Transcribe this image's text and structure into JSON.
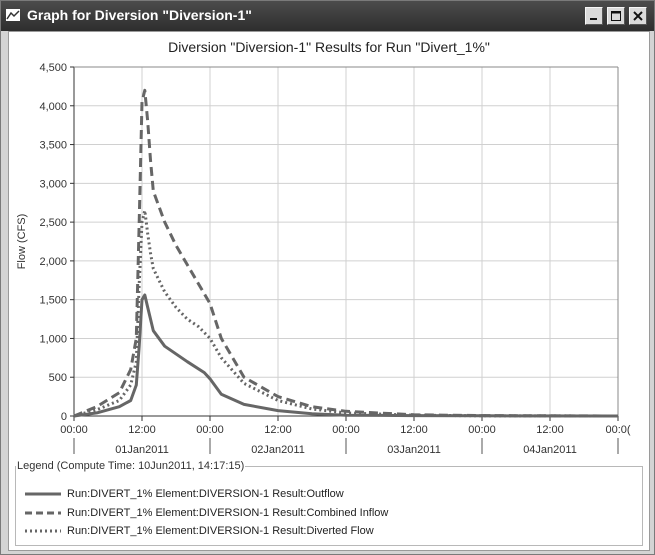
{
  "window": {
    "title": "Graph for Diversion \"Diversion-1\"",
    "buttons": [
      "minimize",
      "maximize",
      "close"
    ]
  },
  "chart_data": {
    "type": "line",
    "title": "Diversion \"Diversion-1\" Results for Run \"Divert_1%\"",
    "xlabel": "",
    "ylabel": "Flow (CFS)",
    "ylim": [
      0,
      4500
    ],
    "yticks": [
      0,
      500,
      1000,
      1500,
      2000,
      2500,
      3000,
      3500,
      4000,
      4500
    ],
    "ytick_labels": [
      "0",
      "500",
      "1,000",
      "1,500",
      "2,000",
      "2,500",
      "3,000",
      "3,500",
      "4,000",
      "4,500"
    ],
    "xlim_hours": [
      0,
      96
    ],
    "xtick_labels": [
      "00:00",
      "12:00",
      "00:00",
      "12:00",
      "00:00",
      "12:00",
      "00:00",
      "12:00",
      "00:0("
    ],
    "date_labels": [
      "01Jan2011",
      "02Jan2011",
      "03Jan2011",
      "04Jan2011"
    ],
    "grid": true,
    "legend_title": "Legend (Compute Time: 10Jun2011, 14:17:15)",
    "legend_position": "bottom",
    "series": [
      {
        "name": "Run:DIVERT_1% Element:DIVERSION-1 Result:Outflow",
        "style": "solid",
        "color": "#666666",
        "x": [
          0,
          4,
          8,
          10,
          11,
          11.5,
          12,
          12.5,
          13,
          14,
          16,
          20,
          23,
          24,
          26,
          30,
          36,
          42,
          48,
          60,
          72,
          96
        ],
        "y": [
          0,
          40,
          120,
          200,
          400,
          900,
          1500,
          1560,
          1400,
          1100,
          900,
          700,
          560,
          480,
          280,
          150,
          70,
          30,
          10,
          5,
          2,
          0
        ]
      },
      {
        "name": "Run:DIVERT_1% Element:DIVERSION-1 Result:Combined Inflow",
        "style": "dashed",
        "color": "#666666",
        "x": [
          0,
          4,
          8,
          10,
          11,
          11.5,
          12,
          12.5,
          13,
          13.5,
          14,
          16,
          18,
          20,
          22,
          24,
          26,
          30,
          36,
          42,
          48,
          60,
          72,
          96
        ],
        "y": [
          0,
          120,
          300,
          600,
          1000,
          2500,
          4050,
          4200,
          3800,
          3300,
          2900,
          2500,
          2200,
          1950,
          1700,
          1450,
          1000,
          500,
          250,
          120,
          60,
          15,
          5,
          0
        ]
      },
      {
        "name": "Run:DIVERT_1% Element:DIVERSION-1 Result:Diverted Flow",
        "style": "dotted",
        "color": "#666666",
        "x": [
          0,
          4,
          8,
          10,
          11,
          11.5,
          12,
          12.5,
          13,
          13.5,
          14,
          16,
          18,
          20,
          22,
          24,
          26,
          30,
          36,
          42,
          48,
          60,
          72,
          96
        ],
        "y": [
          0,
          80,
          200,
          400,
          700,
          1700,
          2500,
          2650,
          2350,
          2100,
          1900,
          1600,
          1400,
          1250,
          1150,
          1000,
          750,
          420,
          200,
          90,
          40,
          10,
          3,
          0
        ]
      }
    ]
  }
}
